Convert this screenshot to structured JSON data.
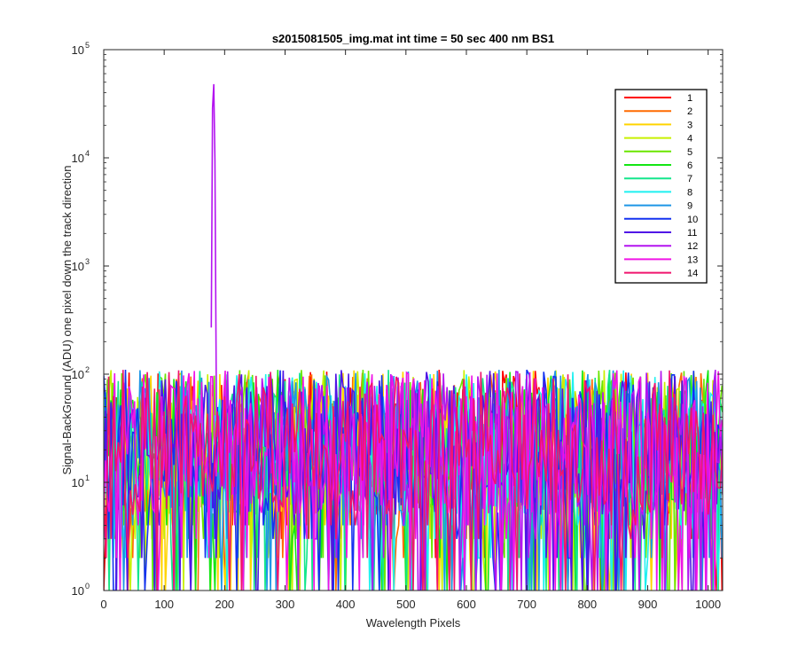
{
  "chart_data": {
    "type": "line",
    "title": "s2015081505_img.mat int time = 50 sec  400 nm BS1",
    "xlabel": "Wavelength Pixels",
    "ylabel": "Signal-BackGround (ADU) one pixel down the track direction",
    "xlim": [
      0,
      1024
    ],
    "ylim": [
      1,
      100000
    ],
    "yscale": "log",
    "xticks": [
      "0",
      "100",
      "200",
      "300",
      "400",
      "500",
      "600",
      "700",
      "800",
      "900",
      "1000"
    ],
    "xtick_values": [
      0,
      100,
      200,
      300,
      400,
      500,
      600,
      700,
      800,
      900,
      1000
    ],
    "yticks": [
      {
        "base": "10",
        "exp": "0"
      },
      {
        "base": "10",
        "exp": "1"
      },
      {
        "base": "10",
        "exp": "2"
      },
      {
        "base": "10",
        "exp": "3"
      },
      {
        "base": "10",
        "exp": "4"
      },
      {
        "base": "10",
        "exp": "5"
      }
    ],
    "ytick_values": [
      1,
      10,
      100,
      1000,
      10000,
      100000
    ],
    "grid": false,
    "legend_position": "top-right",
    "series": [
      {
        "name": "1",
        "color": "#ff0000"
      },
      {
        "name": "2",
        "color": "#ff6a00"
      },
      {
        "name": "3",
        "color": "#ffd400"
      },
      {
        "name": "4",
        "color": "#c8f000"
      },
      {
        "name": "5",
        "color": "#6ae600"
      },
      {
        "name": "6",
        "color": "#14e614"
      },
      {
        "name": "7",
        "color": "#14e68c"
      },
      {
        "name": "8",
        "color": "#1ef0f0"
      },
      {
        "name": "9",
        "color": "#1e96e6"
      },
      {
        "name": "10",
        "color": "#1432f0"
      },
      {
        "name": "11",
        "color": "#5014e6"
      },
      {
        "name": "12",
        "color": "#b414f0"
      },
      {
        "name": "13",
        "color": "#f014e6"
      },
      {
        "name": "14",
        "color": "#f0146e"
      }
    ],
    "noise_range": [
      1,
      110
    ],
    "peak": {
      "series": "12",
      "x": 182,
      "y": 48000,
      "base_y": 270,
      "tail_y": 110
    }
  }
}
